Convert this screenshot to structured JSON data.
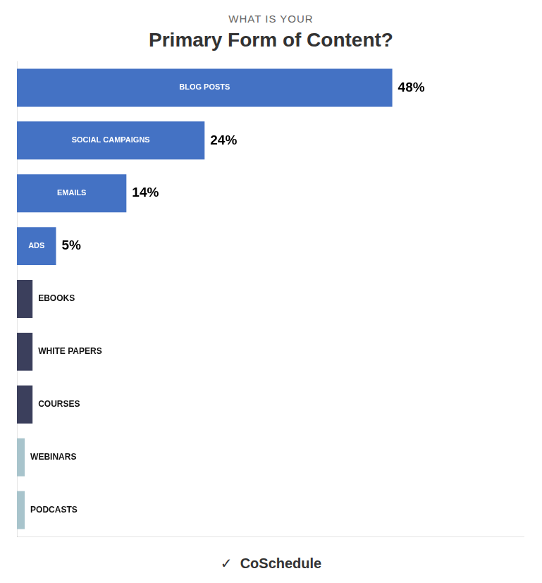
{
  "chart_data": {
    "type": "bar",
    "orientation": "horizontal",
    "title": "Primary Form of Content?",
    "subtitle": "WHAT IS YOUR",
    "annotations": [
      "✓  CoSchedule"
    ],
    "categories": [
      "BLOG POSTS",
      "SOCIAL CAMPAIGNS",
      "EMAILS",
      "ADS",
      "EBOOKS",
      "WHITE PAPERS",
      "COURSES",
      "WEBINARS",
      "PODCASTS"
    ],
    "values": [
      48,
      24,
      14,
      5,
      2,
      2,
      2,
      1,
      1
    ],
    "colors": [
      "#4472c4",
      "#4472c4",
      "#4472c4",
      "#4472c4",
      "#3b3f5c",
      "#3b3f5c",
      "#3b3f5c",
      "#a8c4cc",
      "#a8c4cc"
    ],
    "data_labels": true,
    "value_labels": [
      "48%",
      "24%",
      "14%",
      "5%",
      null,
      null,
      null,
      null,
      null
    ],
    "xlim": [
      0,
      64.8
    ],
    "tick_labels": false,
    "grid": false
  }
}
